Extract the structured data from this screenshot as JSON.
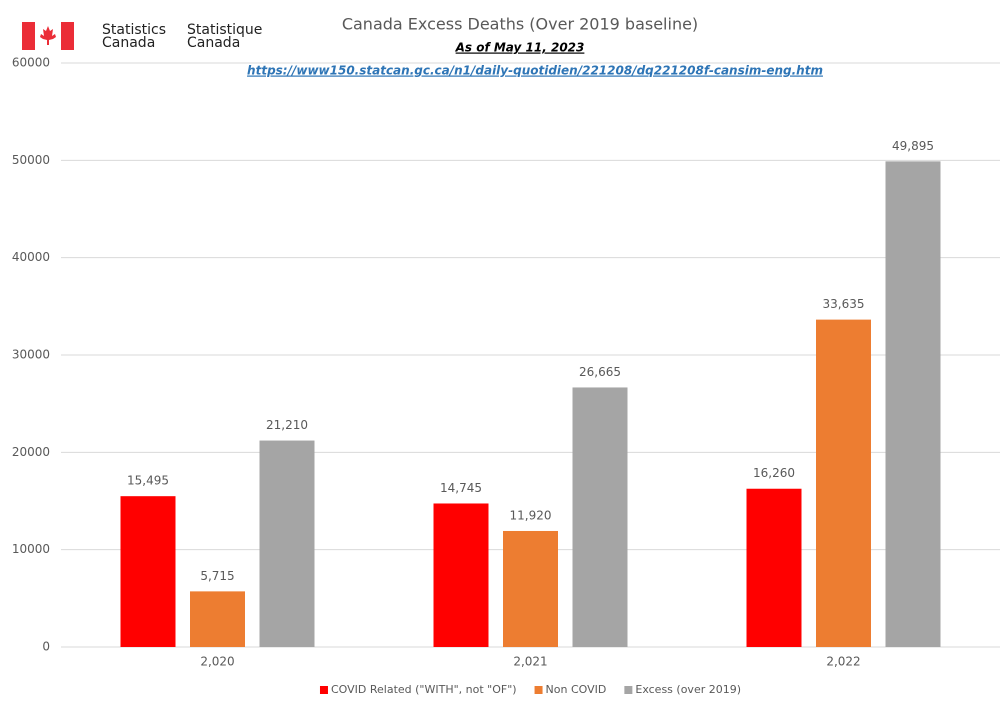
{
  "header": {
    "agency_en": [
      "Statistics",
      "Canada"
    ],
    "agency_fr": [
      "Statistique",
      "Canada"
    ]
  },
  "chart_data": {
    "type": "bar",
    "title": "Canada Excess Deaths (Over 2019 baseline)",
    "subtitle": "As of May 11, 2023",
    "source": "https://www150.statcan.gc.ca/n1/daily-quotidien/221208/dq221208f-cansim-eng.htm",
    "categories": [
      "2,020",
      "2,021",
      "2,022"
    ],
    "series": [
      {
        "name": "COVID Related (\"WITH\", not \"OF\")",
        "color": "#ff0000",
        "values": [
          15495,
          14745,
          16260
        ],
        "value_labels": [
          "15,495",
          "14,745",
          "16,260"
        ]
      },
      {
        "name": "Non COVID",
        "color": "#ed7d31",
        "values": [
          5715,
          11920,
          33635
        ],
        "value_labels": [
          "5,715",
          "11,920",
          "33,635"
        ]
      },
      {
        "name": "Excess (over 2019)",
        "color": "#a5a5a5",
        "values": [
          21210,
          26665,
          49895
        ],
        "value_labels": [
          "21,210",
          "26,665",
          "49,895"
        ]
      }
    ],
    "ylim": [
      0,
      60000
    ],
    "yticks": [
      0,
      10000,
      20000,
      30000,
      40000,
      50000,
      60000
    ],
    "grid": true,
    "legend": "bottom"
  }
}
